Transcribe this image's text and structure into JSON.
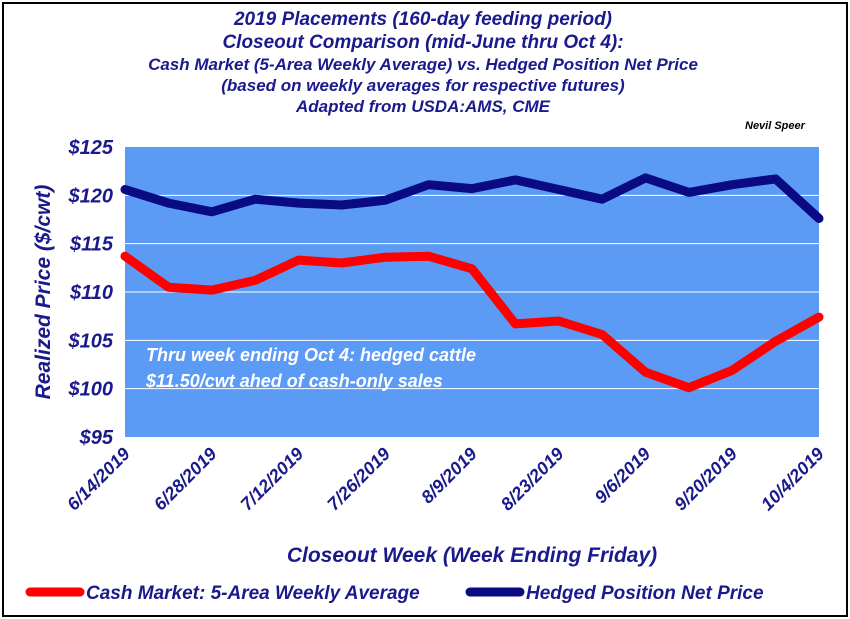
{
  "chart_data": {
    "type": "line",
    "title": [
      "2019 Placements (160-day feeding period)",
      "Closeout Comparison (mid-June thru Oct 4):"
    ],
    "subtitle": [
      "Cash Market (5-Area Weekly Average) vs. Hedged Position Net Price",
      "(based on weekly averages for respective futures)",
      "Adapted from USDA:AMS, CME"
    ],
    "author": "Nevil Speer",
    "ylabel": "Realized Price ($/cwt)",
    "xlabel": "Closeout Week (Week Ending Friday)",
    "ylim": [
      95,
      125
    ],
    "yticks": [
      95,
      100,
      105,
      110,
      115,
      120,
      125
    ],
    "ytick_labels": [
      "$95",
      "$100",
      "$105",
      "$110",
      "$115",
      "$120",
      "$125"
    ],
    "x": [
      "6/14/2019",
      "6/21/2019",
      "6/28/2019",
      "7/5/2019",
      "7/12/2019",
      "7/19/2019",
      "7/26/2019",
      "8/2/2019",
      "8/9/2019",
      "8/16/2019",
      "8/23/2019",
      "8/30/2019",
      "9/6/2019",
      "9/13/2019",
      "9/20/2019",
      "9/27/2019",
      "10/4/2019"
    ],
    "xtick_labels": [
      "6/14/2019",
      "6/28/2019",
      "7/12/2019",
      "7/26/2019",
      "8/9/2019",
      "8/23/2019",
      "9/6/2019",
      "9/20/2019",
      "10/4/2019"
    ],
    "series": [
      {
        "name": "Cash Market: 5-Area Weekly Average",
        "color": "#ff0000",
        "values": [
          113.7,
          110.5,
          110.2,
          111.2,
          113.3,
          113.0,
          113.6,
          113.7,
          112.4,
          106.7,
          107.0,
          105.6,
          101.7,
          100.1,
          101.9,
          104.9,
          107.4
        ]
      },
      {
        "name": "Hedged Position Net Price",
        "color": "#0a0a82",
        "values": [
          120.6,
          119.2,
          118.3,
          119.6,
          119.2,
          119.0,
          119.5,
          121.1,
          120.7,
          121.6,
          120.6,
          119.6,
          121.8,
          120.3,
          121.1,
          121.7,
          117.6
        ]
      }
    ],
    "annotation": [
      "Thru week ending Oct 4:  hedged cattle",
      "$11.50/cwt ahed of cash-only sales"
    ],
    "plot_background": "#5b9bf5",
    "grid": true,
    "legend_position": "bottom"
  }
}
